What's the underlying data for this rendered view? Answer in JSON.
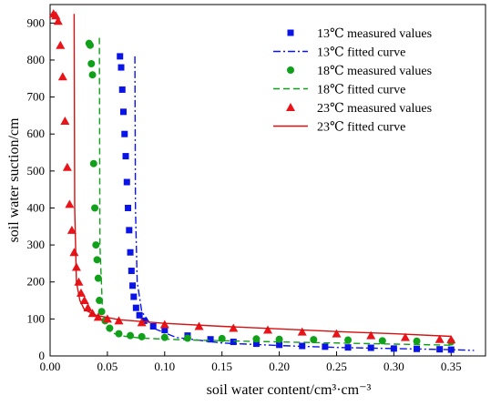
{
  "chart_data": {
    "type": "scatter",
    "xlabel": "soil water content/cm³·cm⁻³",
    "ylabel": "soil water suction/cm",
    "xlim": [
      0,
      0.38
    ],
    "ylim": [
      0,
      950
    ],
    "x_ticks": [
      "0.00",
      "0.05",
      "0.10",
      "0.15",
      "0.20",
      "0.25",
      "0.30",
      "0.35"
    ],
    "y_ticks": [
      "0",
      "100",
      "200",
      "300",
      "400",
      "500",
      "600",
      "700",
      "800",
      "900"
    ],
    "legend_position": "top-right",
    "series": [
      {
        "name": "13℃ measured values",
        "kind": "points",
        "marker": "square",
        "color": "#0a14e6",
        "x": [
          0.061,
          0.062,
          0.063,
          0.064,
          0.065,
          0.066,
          0.067,
          0.068,
          0.069,
          0.07,
          0.071,
          0.072,
          0.073,
          0.075,
          0.078,
          0.082,
          0.09,
          0.1,
          0.12,
          0.14,
          0.16,
          0.18,
          0.2,
          0.22,
          0.24,
          0.26,
          0.28,
          0.3,
          0.32,
          0.34,
          0.35
        ],
        "y": [
          810,
          780,
          720,
          660,
          600,
          540,
          470,
          400,
          340,
          280,
          230,
          190,
          160,
          130,
          110,
          95,
          80,
          70,
          55,
          45,
          38,
          33,
          30,
          27,
          25,
          23,
          22,
          20,
          19,
          18,
          17
        ]
      },
      {
        "name": "13℃ fitted curve",
        "kind": "line",
        "dash": "dashdot",
        "color": "#0a14e6",
        "x": [
          0.074,
          0.0745,
          0.076,
          0.08,
          0.09,
          0.11,
          0.15,
          0.2,
          0.25,
          0.3,
          0.35,
          0.37
        ],
        "y": [
          810,
          400,
          200,
          120,
          75,
          50,
          35,
          28,
          23,
          20,
          17,
          15
        ]
      },
      {
        "name": "18℃ measured values",
        "kind": "points",
        "marker": "circle",
        "color": "#11a01a",
        "x": [
          0.034,
          0.035,
          0.036,
          0.037,
          0.038,
          0.039,
          0.04,
          0.041,
          0.042,
          0.043,
          0.045,
          0.048,
          0.052,
          0.06,
          0.07,
          0.08,
          0.1,
          0.12,
          0.15,
          0.18,
          0.2,
          0.23,
          0.26,
          0.29,
          0.32,
          0.35
        ],
        "y": [
          845,
          840,
          790,
          760,
          520,
          400,
          300,
          260,
          210,
          150,
          120,
          95,
          75,
          60,
          55,
          52,
          50,
          48,
          47,
          46,
          45,
          44,
          43,
          41,
          40,
          38
        ]
      },
      {
        "name": "18℃ fitted curve",
        "kind": "line",
        "dash": "dash",
        "color": "#11a01a",
        "x": [
          0.043,
          0.0435,
          0.046,
          0.05,
          0.06,
          0.08,
          0.12,
          0.2,
          0.3,
          0.35
        ],
        "y": [
          860,
          300,
          100,
          70,
          55,
          48,
          43,
          38,
          32,
          29
        ]
      },
      {
        "name": "23℃ measured values",
        "kind": "points",
        "marker": "triangle",
        "color": "#e8141a",
        "x": [
          0.003,
          0.005,
          0.007,
          0.009,
          0.011,
          0.013,
          0.015,
          0.017,
          0.019,
          0.021,
          0.023,
          0.025,
          0.027,
          0.03,
          0.033,
          0.037,
          0.042,
          0.05,
          0.06,
          0.08,
          0.1,
          0.13,
          0.16,
          0.19,
          0.22,
          0.25,
          0.28,
          0.31,
          0.34,
          0.35
        ],
        "y": [
          925,
          920,
          905,
          840,
          755,
          635,
          510,
          410,
          340,
          280,
          240,
          200,
          170,
          150,
          130,
          115,
          105,
          100,
          95,
          90,
          85,
          80,
          75,
          70,
          65,
          60,
          55,
          50,
          45,
          44
        ]
      },
      {
        "name": "23℃ fitted curve",
        "kind": "line",
        "dash": "solid",
        "color": "#d61010",
        "x": [
          0.021,
          0.0215,
          0.023,
          0.026,
          0.03,
          0.04,
          0.06,
          0.1,
          0.15,
          0.2,
          0.25,
          0.3,
          0.35
        ],
        "y": [
          925,
          400,
          200,
          150,
          125,
          110,
          98,
          88,
          80,
          73,
          66,
          60,
          53
        ]
      }
    ]
  }
}
